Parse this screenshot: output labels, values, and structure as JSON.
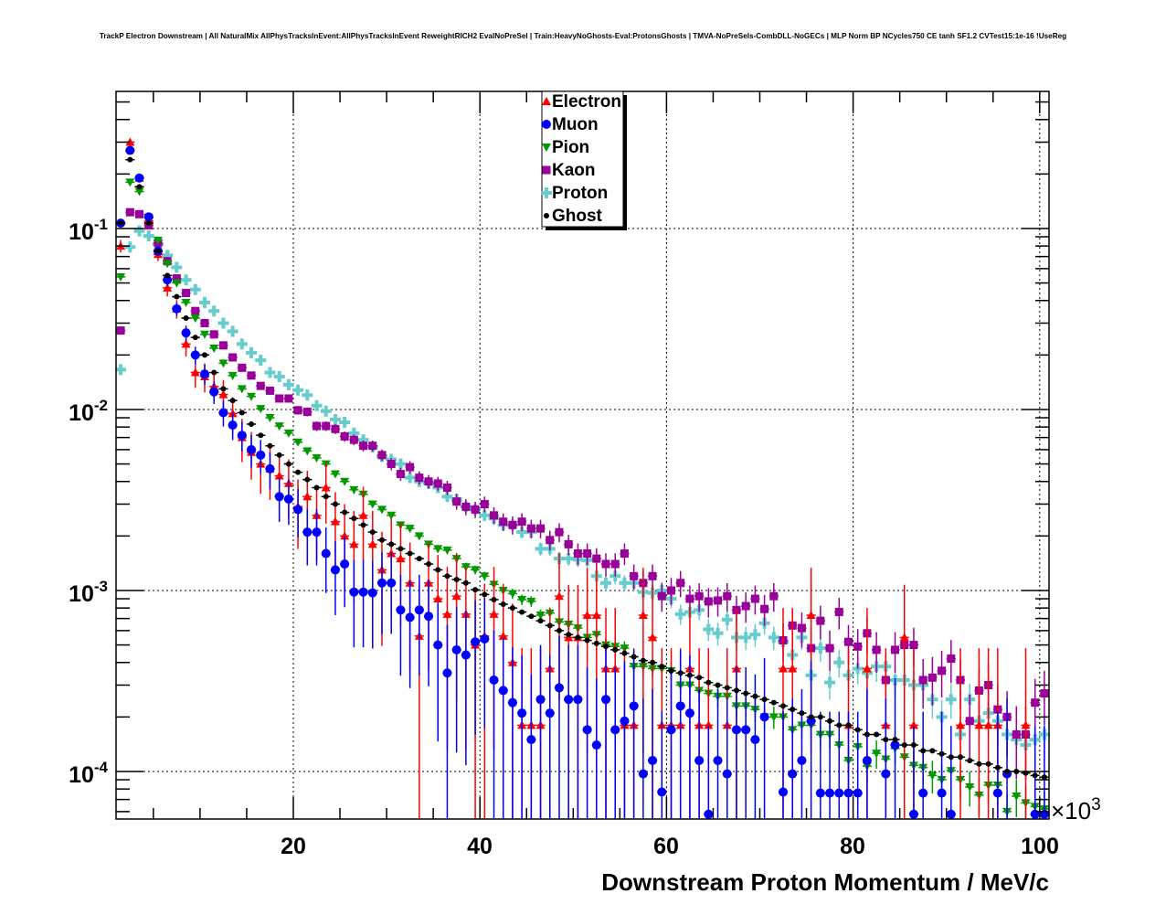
{
  "chart_data": {
    "type": "scatter",
    "title": "TrackP Electron Downstream | All NaturalMix AllPhysTracksInEvent:AllPhysTracksInEvent ReweightRICH2 EvalNoPreSel | Train:HeavyNoGhosts-Eval:ProtonsGhosts | TMVA-NoPreSels-CombDLL-NoGECs | MLP Norm BP NCycles750 CE tanh SF1.2 CVTest15:1e-16 !UseReg",
    "xlabel": "Downstream Proton Momentum / MeV/c",
    "x_multiplier": "×10",
    "x_multiplier_exp": "3",
    "ylabel": "",
    "xlim": [
      1,
      101
    ],
    "ylim": [
      5.46e-05,
      0.572
    ],
    "yscale": "log",
    "grid": true,
    "legend_position": "top-center",
    "xtick_labels": [
      "20",
      "40",
      "60",
      "80",
      "100"
    ],
    "xtick_values": [
      20,
      40,
      60,
      80,
      100
    ],
    "ytick_labels": [
      {
        "base": "10",
        "exp": "-1",
        "value": 0.1
      },
      {
        "base": "10",
        "exp": "-2",
        "value": 0.01
      },
      {
        "base": "10",
        "exp": "-3",
        "value": 0.001
      },
      {
        "base": "10",
        "exp": "-4",
        "value": 0.0001
      }
    ],
    "bin_start": 1,
    "bin_width": 1,
    "series": [
      {
        "name": "Electron",
        "color": "#ff0000",
        "marker": "triangle-up",
        "err_scale": 0.0005,
        "values": [
          0.08,
          0.3,
          0.19,
          0.11,
          0.072,
          0.047,
          0.036,
          0.023,
          0.016,
          0.0152,
          0.0134,
          0.0121,
          0.0095,
          0.007,
          0.0058,
          0.005,
          0.0047,
          0.0043,
          0.0039,
          0.0029,
          0.0033,
          0.0026,
          0.0037,
          0.0024,
          0.002,
          0.0018,
          0.0026,
          0.0018,
          0.0013,
          0.0016,
          0.0015,
          0.0011,
          0.00056,
          0.0011,
          0.0009,
          0.00074,
          0.00093,
          0.00074,
          0.0005,
          0.00056,
          0.00074,
          0.00056,
          0.0004,
          0.00018,
          0.00018,
          0.00018,
          0.00037,
          0.00093,
          0.00055,
          0.00055,
          0.00073,
          0.00073,
          0.00037,
          0.00037,
          0.00018,
          0.00018,
          0.00073,
          0.00055,
          0.00018,
          0.00018,
          0.00018,
          0.00037,
          0.00018,
          0.00018,
          null,
          0.00018,
          0.00037,
          null,
          null,
          null,
          null,
          0.00037,
          0.00037,
          null,
          0.00073,
          null,
          null,
          null,
          0.00018,
          null,
          0.00037,
          null,
          0.00018,
          null,
          0.00055,
          0.00018,
          null,
          null,
          null,
          null,
          0.00018,
          null,
          0.00018,
          0.00018,
          0.00018,
          null,
          null,
          0.00018,
          null,
          null
        ]
      },
      {
        "name": "Muon",
        "color": "#0000ff",
        "marker": "circle",
        "err_scale": 0.00025,
        "values": [
          0.107,
          0.27,
          0.19,
          0.116,
          0.075,
          0.052,
          0.036,
          0.0265,
          0.02,
          0.0157,
          0.0125,
          0.0096,
          0.0082,
          0.0072,
          0.006,
          0.0056,
          0.0047,
          0.0033,
          0.0032,
          0.0028,
          0.0021,
          0.0021,
          0.0016,
          0.0013,
          0.0014,
          0.00098,
          0.00098,
          0.00097,
          0.0011,
          0.0011,
          0.00078,
          0.00071,
          0.00078,
          0.00072,
          0.0005,
          0.00035,
          0.00047,
          0.00044,
          0.00052,
          0.00054,
          0.00032,
          0.00028,
          0.00024,
          0.00021,
          0.00015,
          0.00025,
          0.00021,
          0.00029,
          0.00025,
          0.00025,
          0.00017,
          0.00014,
          0.00025,
          0.00017,
          0.00019,
          0.00023,
          9.7e-05,
          0.000115,
          7.7e-05,
          0.00017,
          0.00023,
          0.00021,
          0.000115,
          5.8e-05,
          0.000115,
          9.7e-05,
          0.00017,
          0.00017,
          0.00015,
          0.0002,
          null,
          7.7e-05,
          9.7e-05,
          0.000115,
          0.00019,
          7.6e-05,
          7.6e-05,
          7.6e-05,
          7.6e-05,
          7.6e-05,
          0.000115,
          null,
          9.7e-05,
          0.00014,
          null,
          5.8e-05,
          7.6e-05,
          null,
          7.6e-05,
          5.8e-05,
          null,
          null,
          null,
          null,
          7.6e-05,
          9.7e-05,
          null,
          null,
          5.8e-05,
          5.8e-05
        ]
      },
      {
        "name": "Pion",
        "color": "#009a00",
        "marker": "triangle-down",
        "err_scale": 4e-06,
        "values": [
          0.054,
          0.18,
          0.16,
          0.115,
          0.086,
          0.064,
          0.05,
          0.039,
          0.032,
          0.026,
          0.0218,
          0.018,
          0.0154,
          0.013,
          0.0118,
          0.0101,
          0.009,
          0.0081,
          0.0074,
          0.0066,
          0.0059,
          0.0054,
          0.005,
          0.0044,
          0.004,
          0.0036,
          0.0034,
          0.003,
          0.0028,
          0.0026,
          0.0023,
          0.0022,
          0.002,
          0.0018,
          0.0017,
          0.00167,
          0.0015,
          0.00135,
          0.0013,
          0.0012,
          0.00108,
          0.001,
          0.00096,
          0.00089,
          0.00087,
          0.00073,
          0.00075,
          0.00067,
          0.00065,
          0.00062,
          0.00055,
          0.00057,
          0.0005,
          0.00049,
          0.00048,
          0.00038,
          0.00038,
          0.00037,
          0.00037,
          0.00036,
          0.0003,
          0.0003,
          0.00028,
          0.00027,
          0.00026,
          0.00026,
          0.00023,
          0.00023,
          0.00022,
          0.0002,
          0.0002,
          0.0002,
          0.00017,
          0.00018,
          0.00018,
          0.00016,
          0.00016,
          0.00014,
          0.000115,
          0.000137,
          0.000107,
          0.000126,
          0.000117,
          0.000134,
          0.00012,
          0.000108,
          0.000105,
          9.5e-05,
          9e-05,
          0.000101,
          9e-05,
          8.2e-05,
          7.4e-05,
          8.4e-05,
          8.4e-05,
          6e-05,
          7.3e-05,
          6.7e-05,
          6.4e-05,
          6.2e-05
        ]
      },
      {
        "name": "Kaon",
        "color": "#990099",
        "marker": "square",
        "err_scale": 3e-05,
        "values": [
          0.0273,
          0.123,
          0.12,
          0.104,
          0.083,
          0.066,
          0.053,
          0.044,
          0.035,
          0.03,
          0.026,
          0.0226,
          0.0194,
          0.017,
          0.0154,
          0.0135,
          0.0127,
          0.0115,
          0.0115,
          0.0099,
          0.0097,
          0.0081,
          0.0081,
          0.0078,
          0.0071,
          0.0068,
          0.0063,
          0.0063,
          0.0056,
          0.005,
          0.0044,
          0.0048,
          0.0042,
          0.004,
          0.0039,
          0.0037,
          0.0031,
          0.0029,
          0.0028,
          0.003,
          0.0026,
          0.0024,
          0.0023,
          0.0024,
          0.0022,
          0.0022,
          0.0019,
          0.0021,
          0.0018,
          0.0016,
          0.0016,
          0.0015,
          0.0014,
          0.0014,
          0.0016,
          0.0012,
          0.0011,
          0.0012,
          0.00093,
          0.001,
          0.0011,
          0.0009,
          0.00093,
          0.00087,
          0.00088,
          0.00093,
          0.00078,
          0.00082,
          0.0009,
          0.00079,
          0.00093,
          0.00053,
          0.00064,
          0.00062,
          0.00048,
          0.00068,
          0.00048,
          0.00076,
          0.00052,
          0.00049,
          0.00058,
          0.00047,
          0.00032,
          0.00047,
          0.0005,
          0.0005,
          0.00032,
          0.00033,
          0.00036,
          0.00042,
          0.00032,
          0.00019,
          0.00028,
          0.0003,
          0.00022,
          0.0002,
          0.00016,
          0.00016,
          0.00024,
          0.00027
        ]
      },
      {
        "name": "Proton",
        "color": "#66cccc",
        "marker": "cross",
        "err_scale": 1.2e-05,
        "values": [
          0.0166,
          0.079,
          0.097,
          0.091,
          0.082,
          0.071,
          0.061,
          0.052,
          0.046,
          0.039,
          0.035,
          0.03,
          0.027,
          0.023,
          0.0206,
          0.0187,
          0.016,
          0.0152,
          0.0137,
          0.0128,
          0.012,
          0.0105,
          0.0098,
          0.0088,
          0.0085,
          0.0074,
          0.0068,
          0.0062,
          0.0055,
          0.0053,
          0.005,
          0.0042,
          0.004,
          0.0039,
          0.0037,
          0.0033,
          0.0032,
          0.0029,
          0.0028,
          0.0026,
          0.0025,
          0.0023,
          0.0023,
          0.0021,
          0.0021,
          0.0017,
          0.0017,
          0.0015,
          0.0015,
          0.00148,
          0.00147,
          0.0012,
          0.0011,
          0.0012,
          0.0011,
          0.0011,
          0.00098,
          0.00097,
          0.001,
          0.0009,
          0.00074,
          0.00076,
          0.00078,
          0.00061,
          0.00058,
          0.00069,
          0.00055,
          0.00055,
          0.00057,
          0.00066,
          0.00055,
          0.00052,
          0.00044,
          0.00055,
          0.00034,
          0.00048,
          0.00031,
          0.0004,
          0.00034,
          0.00037,
          0.00035,
          0.00038,
          0.00038,
          0.00032,
          0.00032,
          0.0003,
          0.0003,
          0.00025,
          0.0002,
          0.00025,
          0.00016,
          0.00025,
          0.00019,
          0.00021,
          0.00019,
          0.00016,
          0.00015,
          0.00014,
          0.00015,
          0.00016
        ]
      },
      {
        "name": "Ghost",
        "color": "#000000",
        "marker": "dot",
        "err_scale": 1e-07,
        "values": [
          0.107,
          0.24,
          0.17,
          0.107,
          0.075,
          0.055,
          0.042,
          0.032,
          0.025,
          0.02,
          0.016,
          0.013,
          0.0112,
          0.0096,
          0.0083,
          0.0072,
          0.0063,
          0.0056,
          0.005,
          0.0045,
          0.0041,
          0.0037,
          0.0033,
          0.003,
          0.0027,
          0.0025,
          0.0023,
          0.0021,
          0.0019,
          0.0018,
          0.0017,
          0.0016,
          0.0015,
          0.0014,
          0.0013,
          0.0012,
          0.00115,
          0.0011,
          0.00101,
          0.00095,
          0.00089,
          0.00084,
          0.0008,
          0.00076,
          0.00072,
          0.00068,
          0.00064,
          0.0006,
          0.00057,
          0.00055,
          0.00053,
          0.00051,
          0.00049,
          0.00047,
          0.00045,
          0.00043,
          0.00041,
          0.0004,
          0.00038,
          0.00036,
          0.00035,
          0.00034,
          0.00033,
          0.00031,
          0.0003,
          0.00029,
          0.00028,
          0.00027,
          0.00026,
          0.00025,
          0.00024,
          0.00023,
          0.00022,
          0.00021,
          0.0002,
          0.0002,
          0.00019,
          0.00018,
          0.00018,
          0.00017,
          0.00016,
          0.00016,
          0.00015,
          0.00015,
          0.00014,
          0.00014,
          0.00013,
          0.00013,
          0.000125,
          0.00012,
          0.00012,
          0.000115,
          0.00011,
          0.00011,
          0.000105,
          0.0001,
          0.0001,
          9.8e-05,
          9.5e-05,
          9.3e-05
        ]
      }
    ]
  }
}
